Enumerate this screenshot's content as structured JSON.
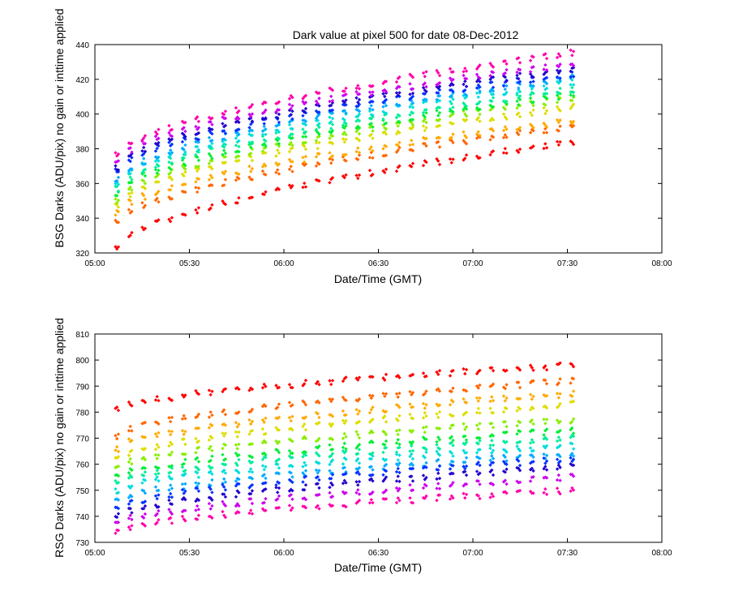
{
  "chart_data": [
    {
      "type": "scatter",
      "title": "Dark value at pixel 500 for date 08-Dec-2012",
      "xlabel": "Date/Time (GMT)",
      "ylabel": "BSG Darks (ADU/pix) no gain or inttime applied",
      "xlim": [
        "05:00",
        "08:00"
      ],
      "ylim": [
        320,
        440
      ],
      "x_ticks": [
        "05:00",
        "05:30",
        "06:00",
        "06:30",
        "07:00",
        "07:30",
        "08:00"
      ],
      "y_ticks": [
        320,
        340,
        360,
        380,
        400,
        420,
        440
      ],
      "legend": "none",
      "grid": false,
      "marker": "diamond",
      "x_start_minutes": 307,
      "x_step_minutes": 4.25,
      "n_columns": 35,
      "series_colors": [
        "#ff0000",
        "#ff6600",
        "#ffaa00",
        "#dddd00",
        "#88ee00",
        "#00ee33",
        "#00ee99",
        "#00dddd",
        "#00aaff",
        "#0033ff",
        "#2200cc",
        "#cc00ee",
        "#ff00aa"
      ],
      "start_levels": [
        323,
        337,
        343,
        347,
        350,
        354,
        357,
        360,
        362,
        367,
        369,
        373,
        376
      ],
      "end_levels": [
        384,
        393,
        396,
        404,
        409,
        411,
        414,
        418,
        421,
        423,
        426,
        429,
        435
      ]
    },
    {
      "type": "scatter",
      "title": "",
      "xlabel": "Date/Time (GMT)",
      "ylabel": "RSG Darks (ADU/pix) no gain or inttime applied",
      "xlim": [
        "05:00",
        "08:00"
      ],
      "ylim": [
        730,
        810
      ],
      "x_ticks": [
        "05:00",
        "05:30",
        "06:00",
        "06:30",
        "07:00",
        "07:30",
        "08:00"
      ],
      "y_ticks": [
        730,
        740,
        750,
        760,
        770,
        780,
        790,
        800,
        810
      ],
      "legend": "none",
      "grid": false,
      "marker": "diamond",
      "x_start_minutes": 307,
      "x_step_minutes": 4.25,
      "n_columns": 35,
      "series_colors": [
        "#ff0000",
        "#ff6600",
        "#ffaa00",
        "#dddd00",
        "#88ee00",
        "#00ee33",
        "#00ee99",
        "#00dddd",
        "#00aaff",
        "#0033ff",
        "#2200cc",
        "#cc00ee",
        "#ff00aa"
      ],
      "start_levels": [
        781,
        771,
        766,
        762,
        759,
        755,
        753,
        750,
        746,
        743,
        740,
        737,
        734
      ],
      "end_levels": [
        798,
        792,
        787,
        783,
        777,
        773,
        770,
        767,
        764,
        762,
        759,
        755,
        750
      ]
    }
  ]
}
